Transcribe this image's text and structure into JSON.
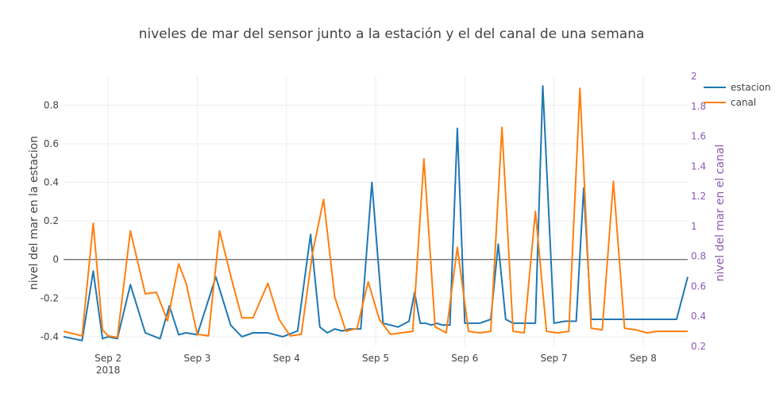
{
  "chart_data": {
    "type": "line",
    "title": "niveles de mar del sensor junto a la estación y el del canal de una semana",
    "ylabel": "nivel del mar en la estacion",
    "y2label": "nivel del mar en el canal",
    "y_ticks": [
      -0.4,
      -0.2,
      0,
      0.2,
      0.4,
      0.6,
      0.8
    ],
    "y2_ticks": [
      0.2,
      0.4,
      0.6,
      0.8,
      1,
      1.2,
      1.4,
      1.6,
      1.8,
      2
    ],
    "ylim": [
      -0.45,
      0.95
    ],
    "y2lim": [
      0.2,
      2.0
    ],
    "x_ticks": [
      "2018-09-02",
      "2018-09-03",
      "2018-09-04",
      "2018-09-05",
      "2018-09-06",
      "2018-09-07",
      "2018-09-08"
    ],
    "x_tick_labels": [
      "Sep 2",
      "Sep 3",
      "Sep 4",
      "Sep 5",
      "Sep 6",
      "Sep 7",
      "Sep 8"
    ],
    "x_year_label": "2018",
    "xlim": [
      "2018-09-01 12:00",
      "2018-09-08 12:00"
    ],
    "legend_position": "top-right",
    "grid": true,
    "zero_line": true,
    "y2_color": "#8c5ab4",
    "series": [
      {
        "name": "estacion",
        "axis": "y",
        "color": "#1f77b4",
        "x": [
          "2018-09-01 12:00",
          "2018-09-01 17:00",
          "2018-09-01 20:00",
          "2018-09-01 22:30",
          "2018-09-02 00:00",
          "2018-09-02 02:30",
          "2018-09-02 06:00",
          "2018-09-02 10:00",
          "2018-09-02 14:00",
          "2018-09-02 16:30",
          "2018-09-02 19:00",
          "2018-09-02 21:00",
          "2018-09-03 00:00",
          "2018-09-03 05:00",
          "2018-09-03 09:00",
          "2018-09-03 12:00",
          "2018-09-03 15:00",
          "2018-09-03 19:00",
          "2018-09-03 23:00",
          "2018-09-04 03:00",
          "2018-09-04 06:30",
          "2018-09-04 09:00",
          "2018-09-04 11:00",
          "2018-09-04 13:00",
          "2018-09-04 15:00",
          "2018-09-04 17:00",
          "2018-09-04 20:00",
          "2018-09-04 23:00",
          "2018-09-05 02:00",
          "2018-09-05 06:00",
          "2018-09-05 09:00",
          "2018-09-05 10:30",
          "2018-09-05 12:00",
          "2018-09-05 13:30",
          "2018-09-05 15:00",
          "2018-09-05 16:30",
          "2018-09-05 18:00",
          "2018-09-05 20:00",
          "2018-09-05 22:00",
          "2018-09-06 00:00",
          "2018-09-06 04:00",
          "2018-09-06 07:00",
          "2018-09-06 09:00",
          "2018-09-06 11:00",
          "2018-09-06 13:00",
          "2018-09-06 15:00",
          "2018-09-06 17:00",
          "2018-09-06 19:00",
          "2018-09-06 21:00",
          "2018-09-07 00:00",
          "2018-09-07 03:00",
          "2018-09-07 06:00",
          "2018-09-07 08:00",
          "2018-09-07 10:00",
          "2018-09-07 13:00",
          "2018-09-07 14:00",
          "2018-09-07 15:00",
          "2018-09-07 16:00",
          "2018-09-07 17:00",
          "2018-09-07 19:00",
          "2018-09-07 20:00",
          "2018-09-07 22:00",
          "2018-09-08 00:00",
          "2018-09-08 02:00",
          "2018-09-08 04:00",
          "2018-09-08 06:00",
          "2018-09-08 09:00",
          "2018-09-08 12:00"
        ],
        "y": [
          -0.4,
          -0.42,
          -0.06,
          -0.41,
          -0.4,
          -0.41,
          -0.13,
          -0.38,
          -0.41,
          -0.24,
          -0.39,
          -0.38,
          -0.39,
          -0.09,
          -0.34,
          -0.4,
          -0.38,
          -0.38,
          -0.4,
          -0.37,
          0.13,
          -0.35,
          -0.38,
          -0.36,
          -0.37,
          -0.36,
          -0.36,
          0.4,
          -0.33,
          -0.35,
          -0.32,
          -0.17,
          -0.33,
          -0.33,
          -0.34,
          -0.33,
          -0.34,
          -0.34,
          0.68,
          -0.33,
          -0.33,
          -0.31,
          0.08,
          -0.31,
          -0.33,
          -0.33,
          -0.33,
          -0.33,
          0.9,
          -0.33,
          -0.32,
          -0.32,
          0.37,
          -0.31,
          -0.31,
          -0.31,
          -0.31,
          -0.31,
          -0.31,
          -0.31,
          -0.31,
          -0.31,
          -0.31,
          -0.31,
          -0.31,
          -0.31,
          -0.31,
          -0.09
        ]
      },
      {
        "name": "canal",
        "axis": "y2",
        "color": "#ff7f0e",
        "x": [
          "2018-09-01 12:00",
          "2018-09-01 17:00",
          "2018-09-01 20:00",
          "2018-09-01 22:30",
          "2018-09-02 00:00",
          "2018-09-02 02:30",
          "2018-09-02 06:00",
          "2018-09-02 10:00",
          "2018-09-02 13:00",
          "2018-09-02 16:00",
          "2018-09-02 19:00",
          "2018-09-02 21:00",
          "2018-09-03 00:00",
          "2018-09-03 03:00",
          "2018-09-03 06:00",
          "2018-09-03 09:00",
          "2018-09-03 12:00",
          "2018-09-03 15:00",
          "2018-09-03 19:00",
          "2018-09-03 22:00",
          "2018-09-04 01:00",
          "2018-09-04 04:00",
          "2018-09-04 07:00",
          "2018-09-04 10:00",
          "2018-09-04 13:00",
          "2018-09-04 16:00",
          "2018-09-04 19:00",
          "2018-09-04 22:00",
          "2018-09-05 01:00",
          "2018-09-05 04:00",
          "2018-09-05 07:00",
          "2018-09-05 10:00",
          "2018-09-05 13:00",
          "2018-09-05 16:00",
          "2018-09-05 19:00",
          "2018-09-05 22:00",
          "2018-09-06 01:00",
          "2018-09-06 04:00",
          "2018-09-06 07:00",
          "2018-09-06 10:00",
          "2018-09-06 13:00",
          "2018-09-06 16:00",
          "2018-09-06 19:00",
          "2018-09-06 22:00",
          "2018-09-07 01:00",
          "2018-09-07 04:00",
          "2018-09-07 07:00",
          "2018-09-07 10:00",
          "2018-09-07 13:00",
          "2018-09-07 16:00",
          "2018-09-07 19:00",
          "2018-09-07 22:00",
          "2018-09-08 01:00",
          "2018-09-08 04:00",
          "2018-09-08 07:00",
          "2018-09-08 10:00",
          "2018-09-08 12:00"
        ],
        "y": [
          0.3,
          0.27,
          1.02,
          0.31,
          0.27,
          0.26,
          0.97,
          0.55,
          0.56,
          0.37,
          0.75,
          0.62,
          0.28,
          0.27,
          0.97,
          0.67,
          0.39,
          0.39,
          0.62,
          0.38,
          0.27,
          0.28,
          0.82,
          1.18,
          0.53,
          0.3,
          0.32,
          0.63,
          0.38,
          0.28,
          0.29,
          0.3,
          1.45,
          0.33,
          0.29,
          0.86,
          0.3,
          0.29,
          0.3,
          1.66,
          0.3,
          0.29,
          1.1,
          0.3,
          0.29,
          0.3,
          1.92,
          0.32,
          0.31,
          1.3,
          0.32,
          0.31,
          0.29,
          0.3,
          0.3,
          0.3,
          0.3
        ]
      }
    ]
  }
}
